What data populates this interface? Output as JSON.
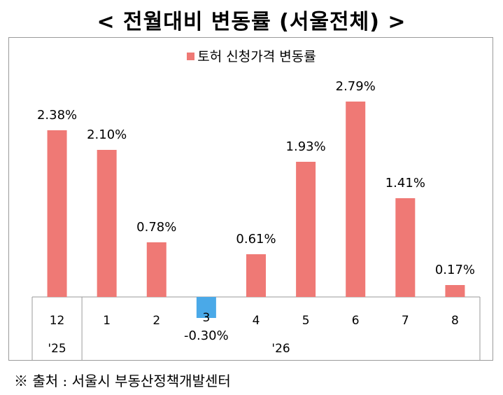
{
  "title": "< 전월대비 변동률 (서울전체) >",
  "source": "※ 출처 : 서울시 부동산정책개발센터",
  "chart_data": {
    "type": "bar",
    "categories": [
      "12",
      "1",
      "2",
      "3",
      "4",
      "5",
      "6",
      "7",
      "8"
    ],
    "year_groups": [
      {
        "label": "'25",
        "from": 0,
        "to": 0
      },
      {
        "label": "'26",
        "from": 1,
        "to": 8
      }
    ],
    "series": [
      {
        "name": "토허 신청가격 변동률",
        "values": [
          2.38,
          2.1,
          0.78,
          -0.3,
          0.61,
          1.93,
          2.79,
          1.41,
          0.17
        ],
        "labels": [
          "2.38%",
          "2.10%",
          "0.78%",
          "-0.30%",
          "0.61%",
          "1.93%",
          "2.79%",
          "1.41%",
          "0.17%"
        ]
      }
    ],
    "colors": {
      "positive": "#ef7975",
      "negative": "#4aa9e8"
    },
    "legend_position": "top-center",
    "grid": false
  }
}
